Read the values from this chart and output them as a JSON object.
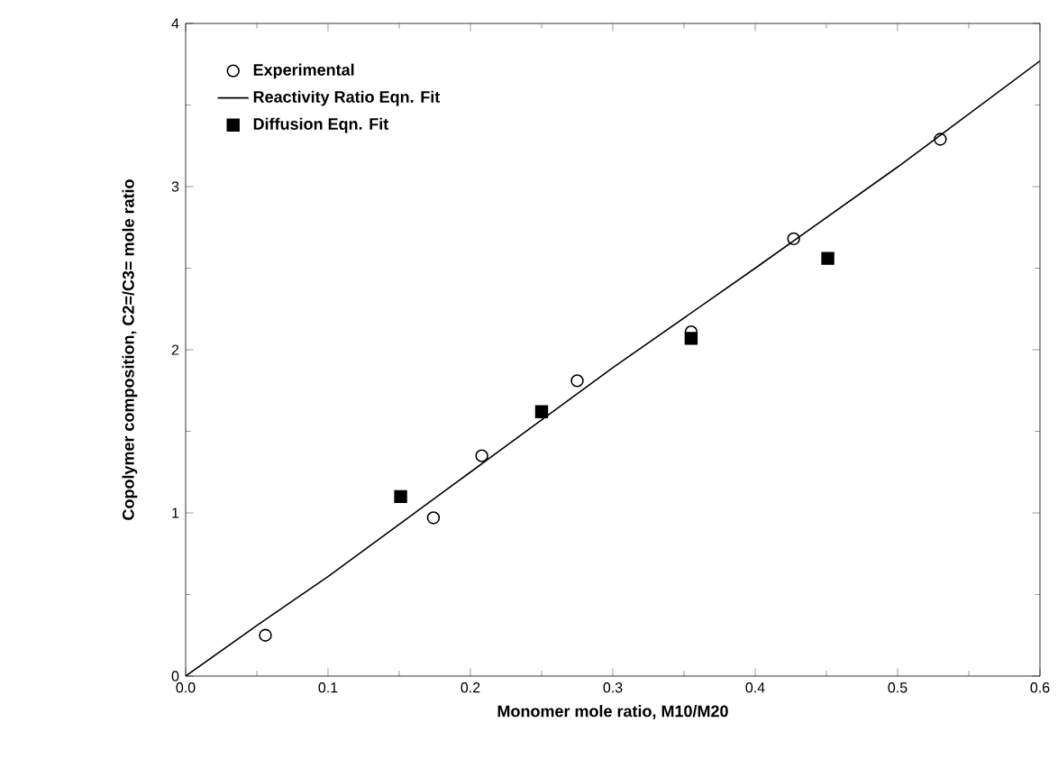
{
  "chart_data": {
    "type": "scatter",
    "xlabel": "Monomer  mole  ratio,  M10/M20",
    "ylabel": "Copolymer  composition,  C2=/C3=  mole  ratio",
    "xlim": [
      0,
      0.6
    ],
    "ylim": [
      0,
      4
    ],
    "xticks": [
      {
        "value": 0,
        "label": "0.0"
      },
      0.1,
      0.2,
      0.3,
      0.4,
      0.5,
      0.6
    ],
    "yticks": [
      0,
      1,
      2,
      3,
      4
    ],
    "grid": false,
    "legend": "top left",
    "series": [
      {
        "name": "Experimental",
        "marker": "circle",
        "color": "#000000",
        "x": [
          0.056,
          0.174,
          0.208,
          0.275,
          0.355,
          0.427,
          0.53
        ],
        "values": [
          0.25,
          0.97,
          1.35,
          1.81,
          2.11,
          2.68,
          3.29
        ]
      },
      {
        "name": "Reactivity Ratio Eqn. Fit",
        "type": "line",
        "marker": "none",
        "line_style": "solid",
        "color": "#000000",
        "x": [
          0,
          0.05,
          0.1,
          0.2,
          0.3,
          0.4,
          0.5,
          0.6
        ],
        "values": [
          0,
          0.31,
          0.61,
          1.25,
          1.89,
          2.5,
          3.12,
          3.77
        ]
      },
      {
        "name": "Diffusion Eqn. Fit",
        "marker": "square",
        "color": "#000000",
        "x": [
          0.151,
          0.25,
          0.355,
          0.451
        ],
        "values": [
          1.1,
          1.62,
          2.07,
          2.56
        ]
      }
    ]
  }
}
